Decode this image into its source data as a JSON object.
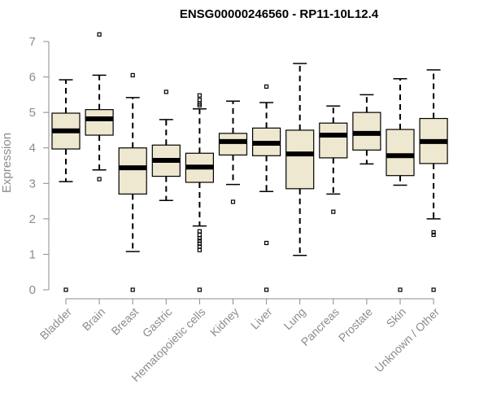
{
  "chart_data": {
    "type": "boxplot",
    "title": "ENSG00000246560 - RP11-10L12.4",
    "xlabel": "",
    "ylabel": "Expression",
    "ylim": [
      0,
      7
    ],
    "yticks": [
      0,
      1,
      2,
      3,
      4,
      5,
      6,
      7
    ],
    "grid": false,
    "categories": [
      "Bladder",
      "Brain",
      "Breast",
      "Gastric",
      "Hematopoietic cells",
      "Kidney",
      "Liver",
      "Lung",
      "Pancreas",
      "Prostate",
      "Skin",
      "Unknown / Other"
    ],
    "box_color": "#efe8d0",
    "boxes": [
      {
        "whislo": 3.05,
        "q1": 3.97,
        "med": 4.48,
        "q3": 4.98,
        "whishi": 5.92,
        "fliers": [
          0
        ]
      },
      {
        "whislo": 3.38,
        "q1": 4.36,
        "med": 4.82,
        "q3": 5.08,
        "whishi": 6.05,
        "fliers": [
          7.2,
          3.12
        ]
      },
      {
        "whislo": 1.08,
        "q1": 2.7,
        "med": 3.44,
        "q3": 4.0,
        "whishi": 5.42,
        "fliers": [
          6.05,
          0
        ]
      },
      {
        "whislo": 2.52,
        "q1": 3.2,
        "med": 3.65,
        "q3": 4.08,
        "whishi": 4.8,
        "fliers": [
          5.58
        ]
      },
      {
        "whislo": 1.8,
        "q1": 3.03,
        "med": 3.46,
        "q3": 3.85,
        "whishi": 5.1,
        "fliers": [
          5.48,
          5.35,
          5.25,
          5.2,
          1.65,
          1.55,
          1.45,
          1.38,
          1.3,
          1.22,
          1.12,
          0
        ]
      },
      {
        "whislo": 2.97,
        "q1": 3.8,
        "med": 4.18,
        "q3": 4.41,
        "whishi": 5.32,
        "fliers": [
          2.48
        ]
      },
      {
        "whislo": 2.77,
        "q1": 3.78,
        "med": 4.13,
        "q3": 4.56,
        "whishi": 5.28,
        "fliers": [
          5.73,
          1.32,
          0
        ]
      },
      {
        "whislo": 0.97,
        "q1": 2.85,
        "med": 3.83,
        "q3": 4.5,
        "whishi": 6.38,
        "fliers": []
      },
      {
        "whislo": 2.7,
        "q1": 3.72,
        "med": 4.36,
        "q3": 4.7,
        "whishi": 5.18,
        "fliers": [
          2.2
        ]
      },
      {
        "whislo": 3.55,
        "q1": 3.94,
        "med": 4.41,
        "q3": 5.0,
        "whishi": 5.5,
        "fliers": []
      },
      {
        "whislo": 2.95,
        "q1": 3.22,
        "med": 3.78,
        "q3": 4.52,
        "whishi": 5.95,
        "fliers": [
          0
        ]
      },
      {
        "whislo": 2.0,
        "q1": 3.56,
        "med": 4.18,
        "q3": 4.83,
        "whishi": 6.2,
        "fliers": [
          1.62,
          1.55,
          0
        ]
      }
    ]
  }
}
